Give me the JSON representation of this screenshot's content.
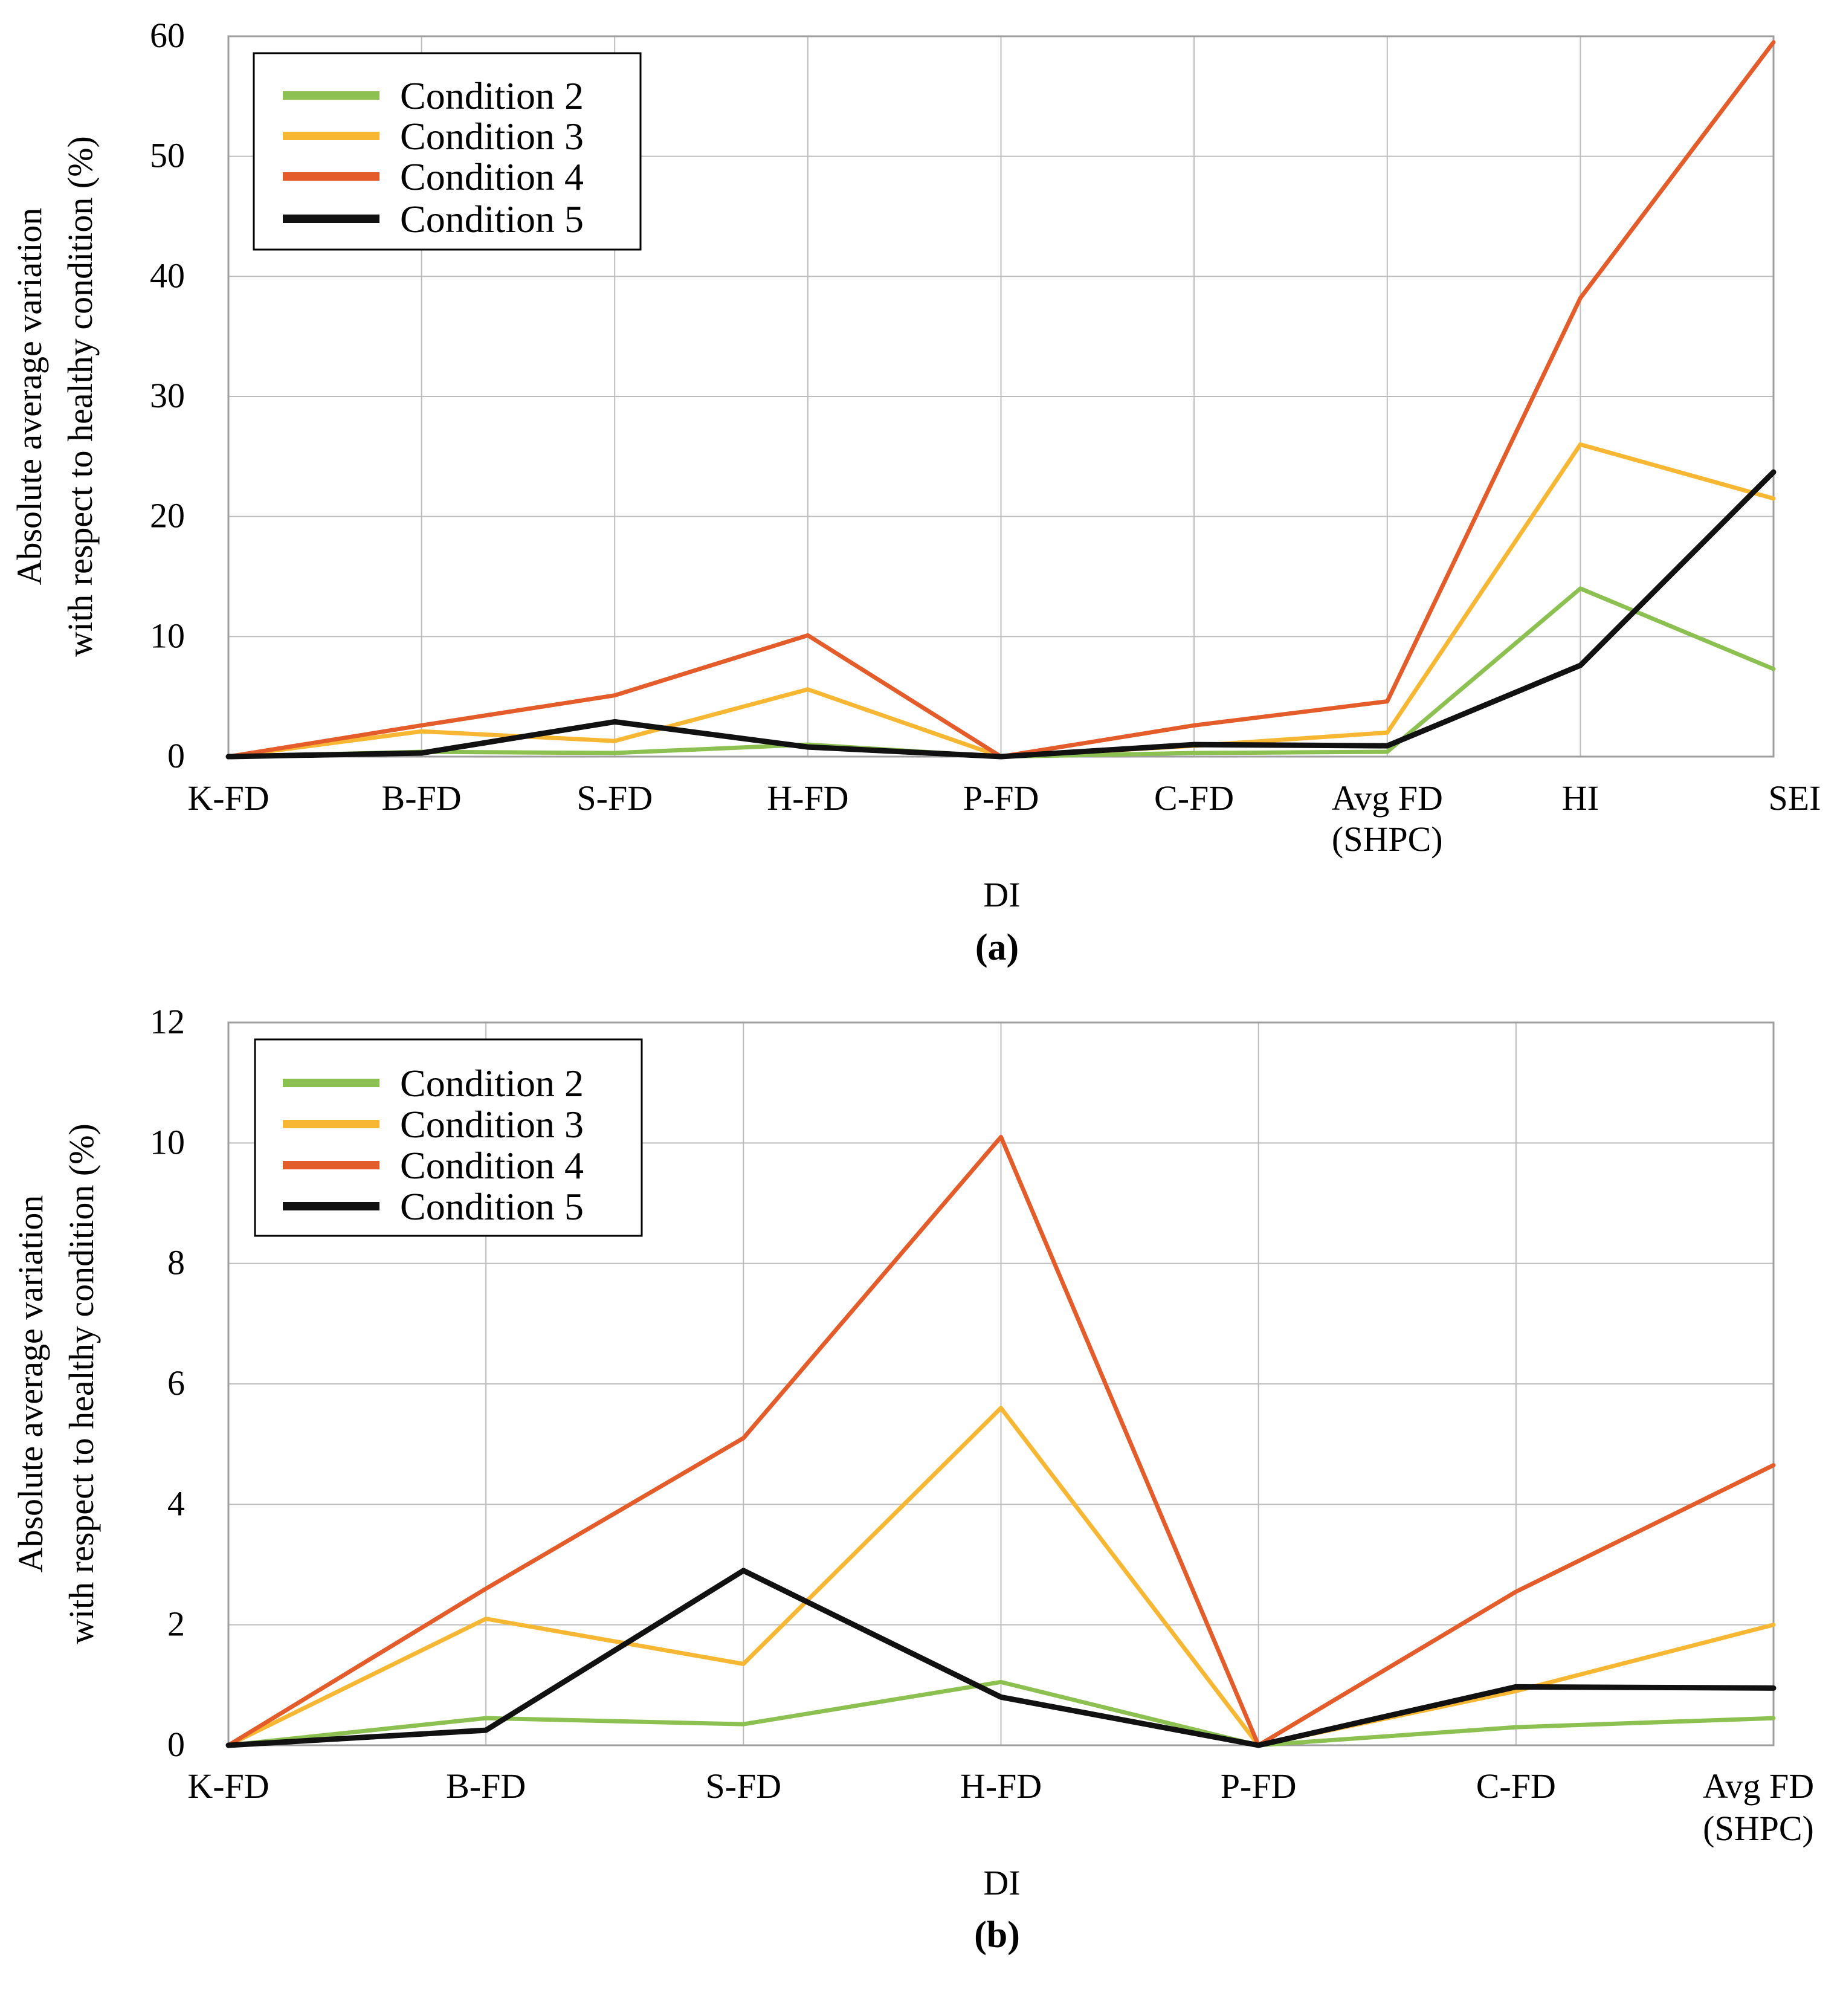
{
  "chart_data": [
    {
      "type": "line",
      "panel_label": "(a)",
      "title": "",
      "xlabel": "DI",
      "ylabel_lines": [
        "Absolute average variation",
        "with respect to healthy condition (%)"
      ],
      "categories": [
        {
          "line1": "K-FD",
          "line2": ""
        },
        {
          "line1": "B-FD",
          "line2": ""
        },
        {
          "line1": "S-FD",
          "line2": ""
        },
        {
          "line1": "H-FD",
          "line2": ""
        },
        {
          "line1": "P-FD",
          "line2": ""
        },
        {
          "line1": "C-FD",
          "line2": ""
        },
        {
          "line1": "Avg FD",
          "line2": "(SHPC)"
        },
        {
          "line1": "HI",
          "line2": ""
        },
        {
          "line1": "SEI",
          "line2": ""
        }
      ],
      "ylim": [
        0,
        60
      ],
      "yticks": [
        "0",
        "10",
        "20",
        "30",
        "40",
        "50",
        "60"
      ],
      "grid": true,
      "legend_position": "top-left",
      "series": [
        {
          "name": "Condition 2",
          "color": "#8cc152",
          "values": [
            0,
            0.4,
            0.3,
            1.0,
            0,
            0.3,
            0.4,
            14.0,
            7.3
          ]
        },
        {
          "name": "Condition 3",
          "color": "#f7b733",
          "values": [
            0,
            2.1,
            1.3,
            5.6,
            0,
            0.9,
            2.0,
            26.0,
            21.5
          ]
        },
        {
          "name": "Condition 4",
          "color": "#e45c2a",
          "values": [
            0,
            2.6,
            5.1,
            10.1,
            0,
            2.6,
            4.6,
            38.2,
            59.5
          ]
        },
        {
          "name": "Condition 5",
          "color": "#111111",
          "values": [
            0,
            0.3,
            2.9,
            0.8,
            0,
            1.0,
            0.9,
            7.6,
            23.7
          ]
        }
      ]
    },
    {
      "type": "line",
      "panel_label": "(b)",
      "title": "",
      "xlabel": "DI",
      "ylabel_lines": [
        "Absolute average variation",
        "with respect to healthy condition (%)"
      ],
      "categories": [
        {
          "line1": "K-FD",
          "line2": ""
        },
        {
          "line1": "B-FD",
          "line2": ""
        },
        {
          "line1": "S-FD",
          "line2": ""
        },
        {
          "line1": "H-FD",
          "line2": ""
        },
        {
          "line1": "P-FD",
          "line2": ""
        },
        {
          "line1": "C-FD",
          "line2": ""
        },
        {
          "line1": "Avg FD",
          "line2": "(SHPC)"
        }
      ],
      "ylim": [
        0,
        12
      ],
      "yticks": [
        "0",
        "2",
        "4",
        "6",
        "8",
        "10",
        "12"
      ],
      "grid": true,
      "legend_position": "top-left",
      "series": [
        {
          "name": "Condition 2",
          "color": "#8cc152",
          "values": [
            0,
            0.45,
            0.35,
            1.05,
            0,
            0.3,
            0.45
          ]
        },
        {
          "name": "Condition 3",
          "color": "#f7b733",
          "values": [
            0,
            2.1,
            1.35,
            5.6,
            0,
            0.9,
            2.0
          ]
        },
        {
          "name": "Condition 4",
          "color": "#e45c2a",
          "values": [
            0,
            2.6,
            5.1,
            10.1,
            0,
            2.55,
            4.65
          ]
        },
        {
          "name": "Condition 5",
          "color": "#111111",
          "values": [
            0,
            0.25,
            2.9,
            0.8,
            0,
            0.97,
            0.95
          ]
        }
      ]
    }
  ]
}
